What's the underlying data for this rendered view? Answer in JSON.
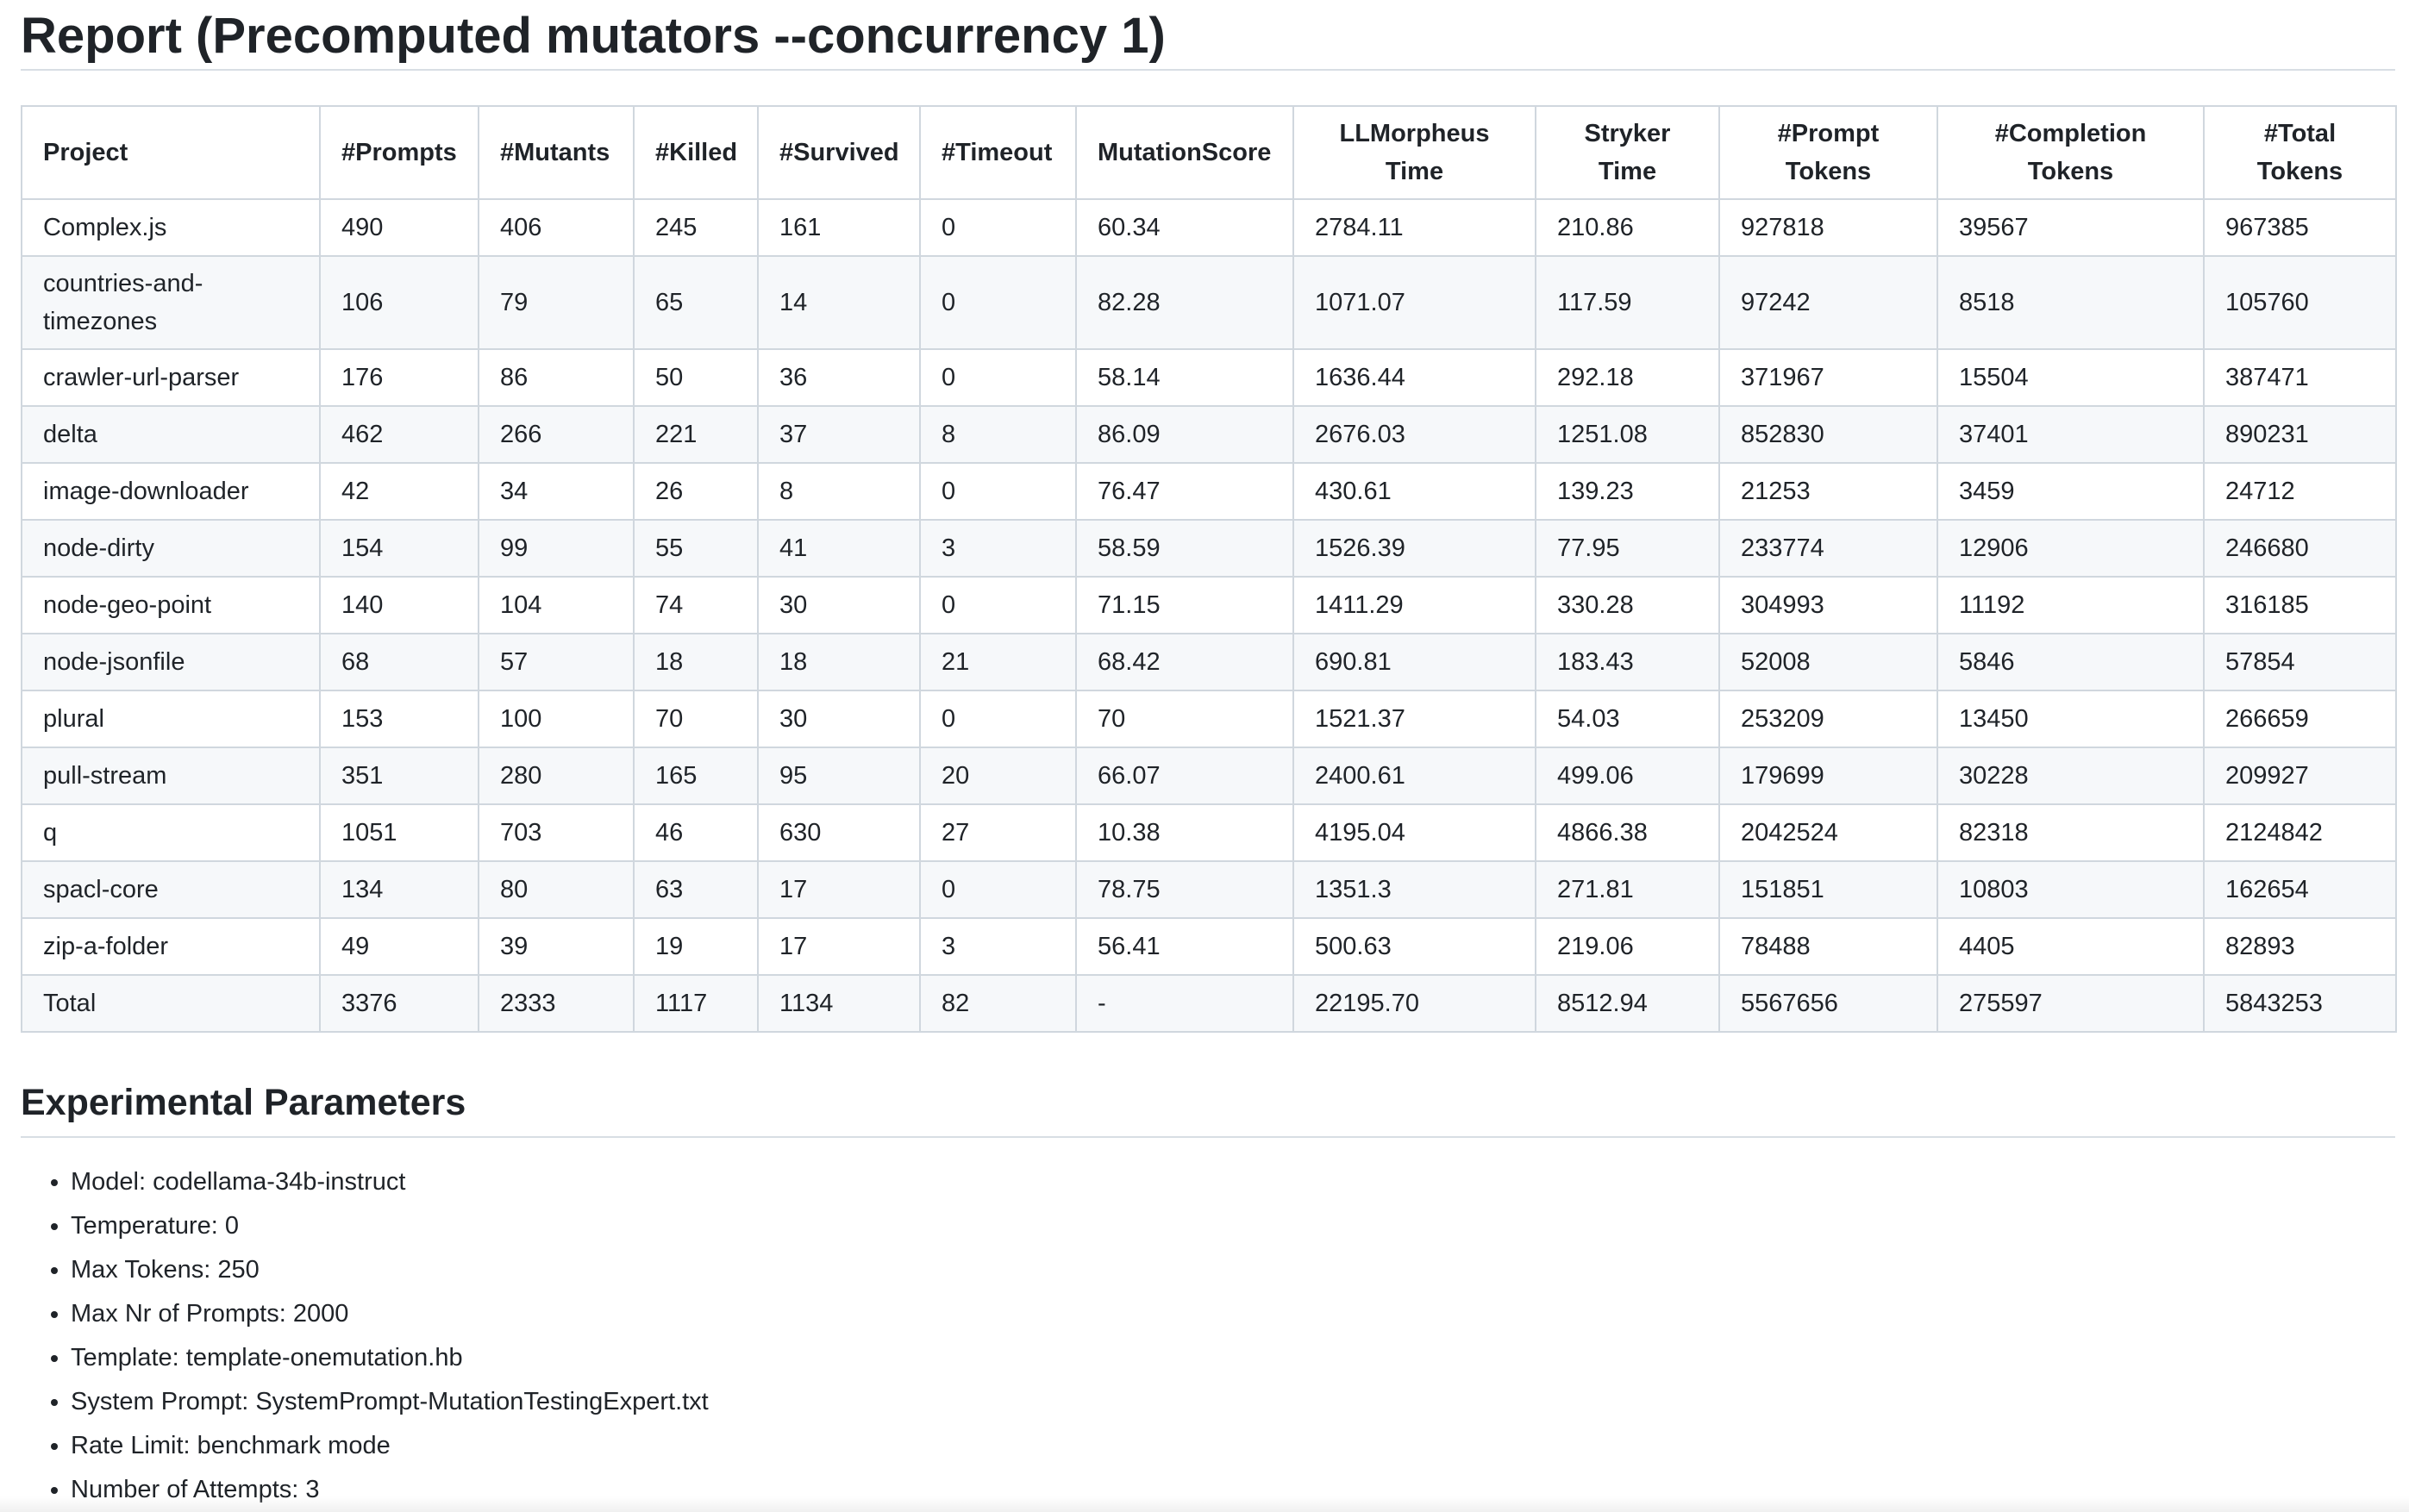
{
  "title": "Report (Precomputed mutators --concurrency 1)",
  "table": {
    "headers": [
      [
        "Project"
      ],
      [
        "#Prompts"
      ],
      [
        "#Mutants"
      ],
      [
        "#Killed"
      ],
      [
        "#Survived"
      ],
      [
        "#Timeout"
      ],
      [
        "MutationScore"
      ],
      [
        "LLMorpheus",
        "Time"
      ],
      [
        "Stryker",
        "Time"
      ],
      [
        "#Prompt",
        "Tokens"
      ],
      [
        "#Completion",
        "Tokens"
      ],
      [
        "#Total",
        "Tokens"
      ]
    ],
    "rows": [
      [
        "Complex.js",
        "490",
        "406",
        "245",
        "161",
        "0",
        "60.34",
        "2784.11",
        "210.86",
        "927818",
        "39567",
        "967385"
      ],
      [
        "countries-and-timezones",
        "106",
        "79",
        "65",
        "14",
        "0",
        "82.28",
        "1071.07",
        "117.59",
        "97242",
        "8518",
        "105760"
      ],
      [
        "crawler-url-parser",
        "176",
        "86",
        "50",
        "36",
        "0",
        "58.14",
        "1636.44",
        "292.18",
        "371967",
        "15504",
        "387471"
      ],
      [
        "delta",
        "462",
        "266",
        "221",
        "37",
        "8",
        "86.09",
        "2676.03",
        "1251.08",
        "852830",
        "37401",
        "890231"
      ],
      [
        "image-downloader",
        "42",
        "34",
        "26",
        "8",
        "0",
        "76.47",
        "430.61",
        "139.23",
        "21253",
        "3459",
        "24712"
      ],
      [
        "node-dirty",
        "154",
        "99",
        "55",
        "41",
        "3",
        "58.59",
        "1526.39",
        "77.95",
        "233774",
        "12906",
        "246680"
      ],
      [
        "node-geo-point",
        "140",
        "104",
        "74",
        "30",
        "0",
        "71.15",
        "1411.29",
        "330.28",
        "304993",
        "11192",
        "316185"
      ],
      [
        "node-jsonfile",
        "68",
        "57",
        "18",
        "18",
        "21",
        "68.42",
        "690.81",
        "183.43",
        "52008",
        "5846",
        "57854"
      ],
      [
        "plural",
        "153",
        "100",
        "70",
        "30",
        "0",
        "70",
        "1521.37",
        "54.03",
        "253209",
        "13450",
        "266659"
      ],
      [
        "pull-stream",
        "351",
        "280",
        "165",
        "95",
        "20",
        "66.07",
        "2400.61",
        "499.06",
        "179699",
        "30228",
        "209927"
      ],
      [
        "q",
        "1051",
        "703",
        "46",
        "630",
        "27",
        "10.38",
        "4195.04",
        "4866.38",
        "2042524",
        "82318",
        "2124842"
      ],
      [
        "spacl-core",
        "134",
        "80",
        "63",
        "17",
        "0",
        "78.75",
        "1351.3",
        "271.81",
        "151851",
        "10803",
        "162654"
      ],
      [
        "zip-a-folder",
        "49",
        "39",
        "19",
        "17",
        "3",
        "56.41",
        "500.63",
        "219.06",
        "78488",
        "4405",
        "82893"
      ],
      [
        "Total",
        "3376",
        "2333",
        "1117",
        "1134",
        "82",
        "-",
        "22195.70",
        "8512.94",
        "5567656",
        "275597",
        "5843253"
      ]
    ]
  },
  "parameters": {
    "title": "Experimental Parameters",
    "items": [
      "Model: codellama-34b-instruct",
      "Temperature: 0",
      "Max Tokens: 250",
      "Max Nr of Prompts: 2000",
      "Template: template-onemutation.hb",
      "System Prompt: SystemPrompt-MutationTestingExpert.txt",
      "Rate Limit: benchmark mode",
      "Number of Attempts: 3"
    ]
  }
}
